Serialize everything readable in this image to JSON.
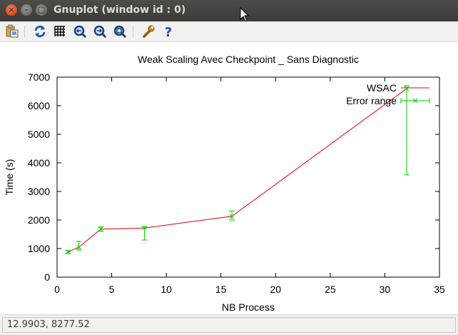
{
  "window": {
    "title": "Gnuplot (window id : 0)"
  },
  "toolbar": {
    "items": [
      {
        "icon": "copy-to-clipboard-icon"
      },
      {
        "icon": "replot-icon"
      },
      {
        "icon": "grid-icon"
      },
      {
        "icon": "zoom-previous-icon"
      },
      {
        "icon": "zoom-next-icon"
      },
      {
        "icon": "autoscale-icon"
      },
      {
        "icon": "settings-icon"
      },
      {
        "icon": "help-icon"
      }
    ]
  },
  "statusbar": {
    "coords": "12.9903,  8277.52"
  },
  "chart_data": {
    "type": "line",
    "title": "Weak Scaling Avec Checkpoint _ Sans Diagnostic",
    "xlabel": "NB Process",
    "ylabel": "Time (s)",
    "xlim": [
      0,
      35
    ],
    "ylim": [
      0,
      7000
    ],
    "xticks": [
      0,
      5,
      10,
      15,
      20,
      25,
      30,
      35
    ],
    "yticks": [
      0,
      1000,
      2000,
      3000,
      4000,
      5000,
      6000,
      7000
    ],
    "legend_position": "top-right",
    "series": [
      {
        "name": "WSAC",
        "color": "#e0000f",
        "x": [
          1,
          2,
          4,
          8,
          16,
          32
        ],
        "y": [
          880,
          1050,
          1680,
          1720,
          2130,
          6600
        ]
      },
      {
        "name": "Error range",
        "color": "#00d100",
        "x": [
          1,
          2,
          4,
          8,
          16,
          32
        ],
        "y": [
          880,
          1050,
          1680,
          1720,
          2130,
          6600
        ],
        "ylow": [
          830,
          950,
          1600,
          1300,
          2000,
          3580
        ],
        "yhigh": [
          930,
          1250,
          1760,
          1760,
          2320,
          6700
        ]
      }
    ]
  }
}
